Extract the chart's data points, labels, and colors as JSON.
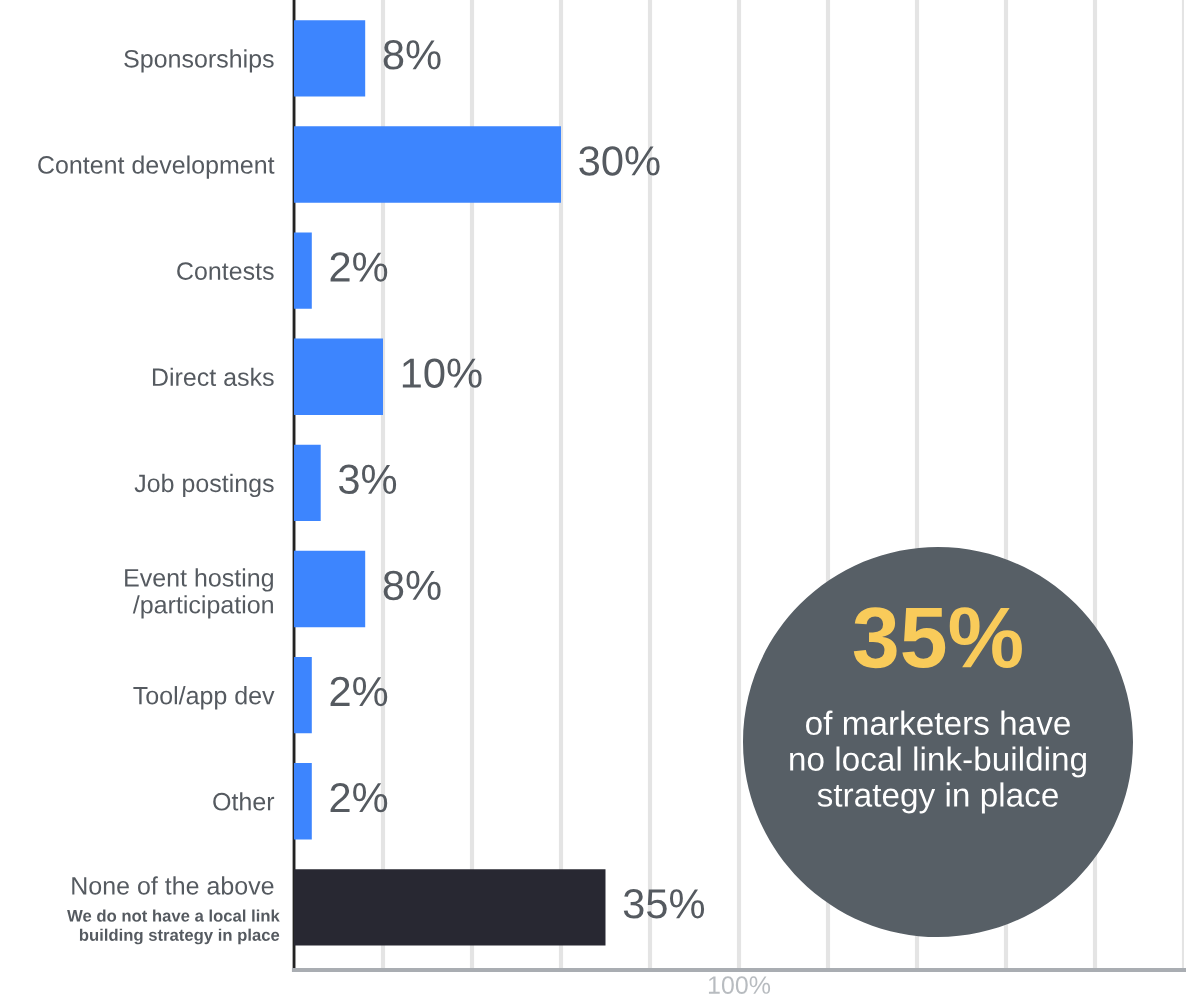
{
  "chart_data": {
    "type": "bar",
    "orientation": "horizontal",
    "categories": [
      "Sponsorships",
      "Content development",
      "Contests",
      "Direct asks",
      "Job postings",
      "Event hosting\n/participation",
      "Tool/app dev",
      "Other",
      "None of the above"
    ],
    "values": [
      8,
      30,
      2,
      10,
      3,
      8,
      2,
      2,
      35
    ],
    "colors": [
      "#3d85fe",
      "#3d85fe",
      "#3d85fe",
      "#3d85fe",
      "#3d85fe",
      "#3d85fe",
      "#3d85fe",
      "#3d85fe",
      "#282832"
    ],
    "value_labels": [
      "8%",
      "30%",
      "2%",
      "10%",
      "3%",
      "8%",
      "2%",
      "2%",
      "35%"
    ],
    "xlabel": "100%",
    "xlim": [
      0,
      100
    ],
    "xticks": [
      {
        "value": 0,
        "label": null
      },
      {
        "value": 10,
        "label": null
      },
      {
        "value": 20,
        "label": null
      },
      {
        "value": 30,
        "label": null
      },
      {
        "value": 40,
        "label": null
      },
      {
        "value": 50,
        "label": null
      },
      {
        "value": 60,
        "label": null
      },
      {
        "value": 70,
        "label": null
      },
      {
        "value": 80,
        "label": null
      },
      {
        "value": 90,
        "label": null
      },
      {
        "value": 100,
        "label": null
      }
    ],
    "tick_labels": "y",
    "grid": "x",
    "annotations": [
      "We do not have a local link\nbuilding strategy in place",
      "35%",
      "of marketers have\nno local link-building\nstrategy in place"
    ]
  }
}
